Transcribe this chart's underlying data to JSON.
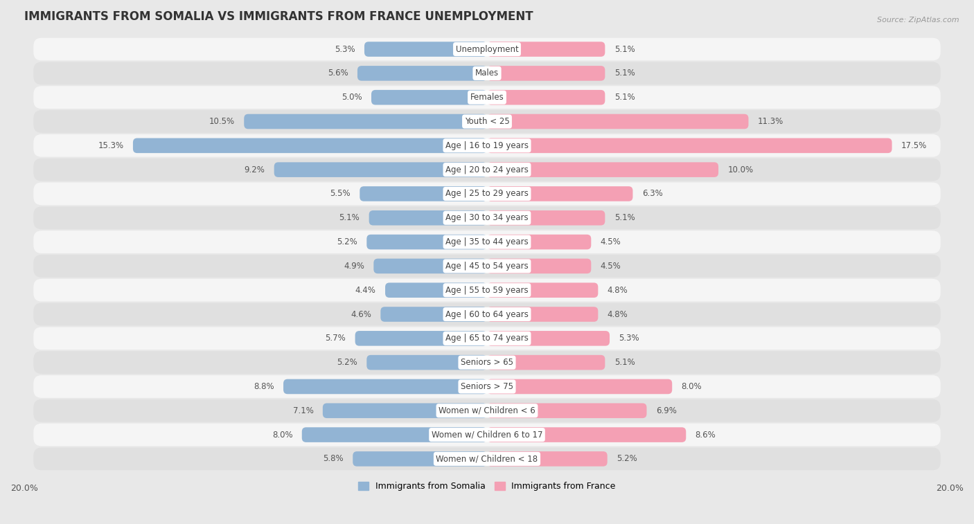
{
  "title": "IMMIGRANTS FROM SOMALIA VS IMMIGRANTS FROM FRANCE UNEMPLOYMENT",
  "source": "Source: ZipAtlas.com",
  "categories": [
    "Unemployment",
    "Males",
    "Females",
    "Youth < 25",
    "Age | 16 to 19 years",
    "Age | 20 to 24 years",
    "Age | 25 to 29 years",
    "Age | 30 to 34 years",
    "Age | 35 to 44 years",
    "Age | 45 to 54 years",
    "Age | 55 to 59 years",
    "Age | 60 to 64 years",
    "Age | 65 to 74 years",
    "Seniors > 65",
    "Seniors > 75",
    "Women w/ Children < 6",
    "Women w/ Children 6 to 17",
    "Women w/ Children < 18"
  ],
  "somalia_values": [
    5.3,
    5.6,
    5.0,
    10.5,
    15.3,
    9.2,
    5.5,
    5.1,
    5.2,
    4.9,
    4.4,
    4.6,
    5.7,
    5.2,
    8.8,
    7.1,
    8.0,
    5.8
  ],
  "france_values": [
    5.1,
    5.1,
    5.1,
    11.3,
    17.5,
    10.0,
    6.3,
    5.1,
    4.5,
    4.5,
    4.8,
    4.8,
    5.3,
    5.1,
    8.0,
    6.9,
    8.6,
    5.2
  ],
  "somalia_color": "#92b4d4",
  "france_color": "#f4a0b4",
  "axis_max": 20.0,
  "background_color": "#e8e8e8",
  "row_color_odd": "#f5f5f5",
  "row_color_even": "#e0e0e0",
  "legend_somalia": "Immigrants from Somalia",
  "legend_france": "Immigrants from France",
  "title_fontsize": 12,
  "label_fontsize": 8.5,
  "value_fontsize": 8.5,
  "axis_label_fontsize": 9
}
